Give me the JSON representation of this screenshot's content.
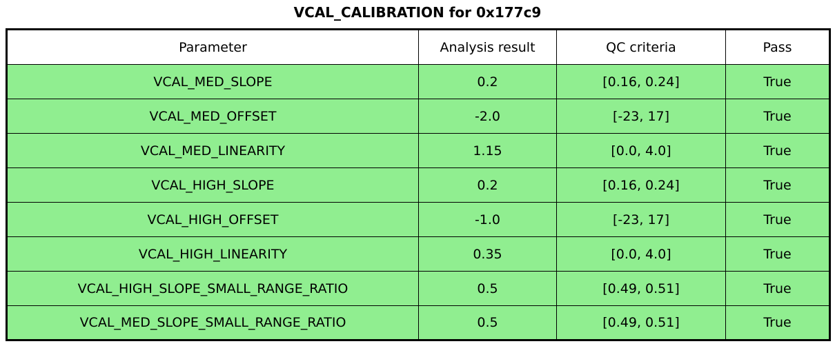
{
  "title": "VCAL_CALIBRATION for 0x177c9",
  "colors": {
    "pass_row_bg": "#90EE90",
    "header_bg": "#FFFFFF",
    "border": "#000000"
  },
  "chart_data": {
    "type": "table",
    "title": "VCAL_CALIBRATION for 0x177c9",
    "columns": [
      "Parameter",
      "Analysis result",
      "QC criteria",
      "Pass"
    ],
    "rows": [
      [
        "VCAL_MED_SLOPE",
        "0.2",
        "[0.16, 0.24]",
        "True"
      ],
      [
        "VCAL_MED_OFFSET",
        "-2.0",
        "[-23, 17]",
        "True"
      ],
      [
        "VCAL_MED_LINEARITY",
        "1.15",
        "[0.0, 4.0]",
        "True"
      ],
      [
        "VCAL_HIGH_SLOPE",
        "0.2",
        "[0.16, 0.24]",
        "True"
      ],
      [
        "VCAL_HIGH_OFFSET",
        "-1.0",
        "[-23, 17]",
        "True"
      ],
      [
        "VCAL_HIGH_LINEARITY",
        "0.35",
        "[0.0, 4.0]",
        "True"
      ],
      [
        "VCAL_HIGH_SLOPE_SMALL_RANGE_RATIO",
        "0.5",
        "[0.49, 0.51]",
        "True"
      ],
      [
        "VCAL_MED_SLOPE_SMALL_RANGE_RATIO",
        "0.5",
        "[0.49, 0.51]",
        "True"
      ]
    ],
    "layout": {
      "header_background": "#FFFFFF",
      "row_background": "#90EE90",
      "grid": true
    }
  }
}
